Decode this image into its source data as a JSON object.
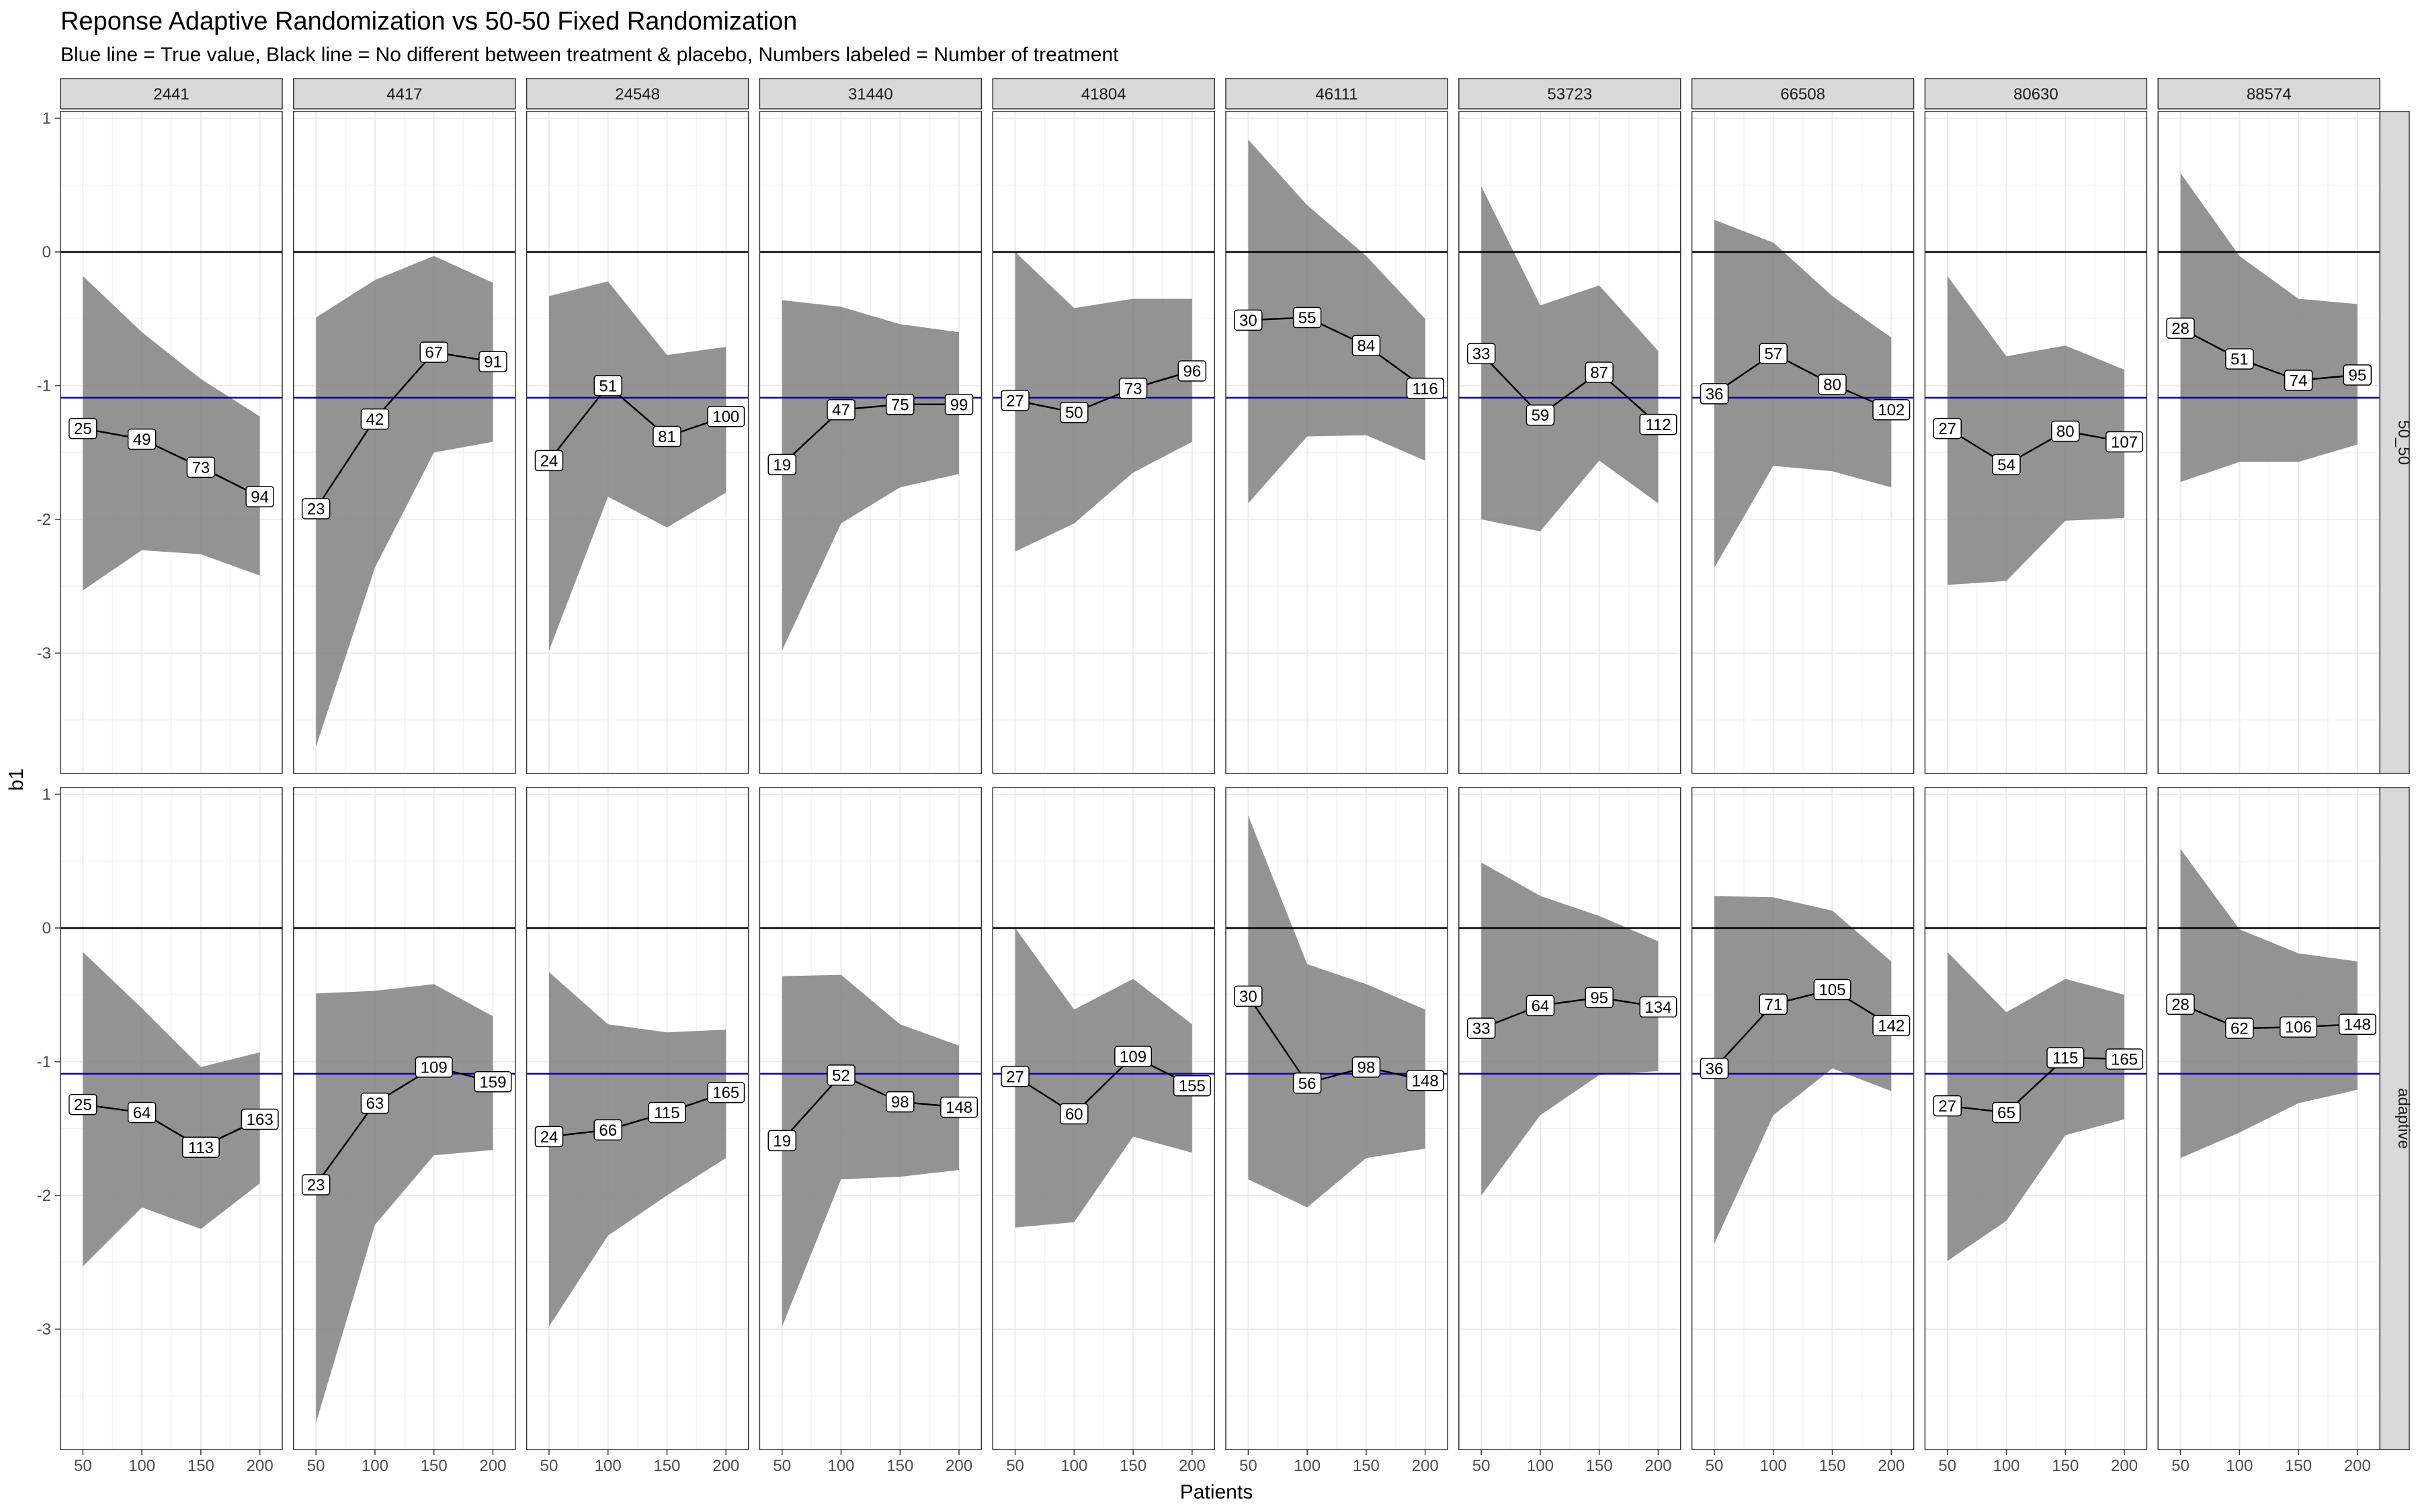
{
  "title": "Reponse Adaptive Randomization vs 50-50 Fixed Randomization",
  "subtitle": "Blue line = True value, Black line = No different between treatment & placebo, Numbers labeled = Number of treatment",
  "colors": {
    "true_value_line": "#0000cc",
    "zero_line": "#000000",
    "ribbon": "#808080",
    "strip_fill": "#d9d9d9",
    "grid": "#ebebeb"
  },
  "chart_data": {
    "type": "line",
    "xlabel": "Patients",
    "ylabel": "b1",
    "x": [
      50,
      100,
      150,
      200
    ],
    "x_ticks": [
      50,
      100,
      150,
      200
    ],
    "y_ticks": [
      1,
      0,
      -1,
      -2,
      -3
    ],
    "ylim": [
      -3.9,
      1.05
    ],
    "xlim": [
      31,
      219
    ],
    "hlines": {
      "true_value": -1.09,
      "no_difference": 0
    },
    "grid": true,
    "facet_columns": [
      "2441",
      "4417",
      "24548",
      "31440",
      "41804",
      "46111",
      "53723",
      "66508",
      "80630",
      "88574"
    ],
    "facet_rows": [
      "50_50",
      "adaptive"
    ],
    "panels": [
      {
        "row": "50_50",
        "col": "2441",
        "estimate": [
          -1.32,
          -1.4,
          -1.61,
          -1.83
        ],
        "lower": [
          -2.53,
          -2.23,
          -2.26,
          -2.42
        ],
        "upper": [
          -0.18,
          -0.6,
          -0.95,
          -1.23
        ],
        "labels": [
          "25",
          "49",
          "73",
          "94"
        ]
      },
      {
        "row": "50_50",
        "col": "4417",
        "estimate": [
          -1.92,
          -1.25,
          -0.75,
          -0.82
        ],
        "lower": [
          -3.7,
          -2.36,
          -1.5,
          -1.42
        ],
        "upper": [
          -0.49,
          -0.21,
          -0.03,
          -0.23
        ],
        "labels": [
          "23",
          "42",
          "67",
          "91"
        ]
      },
      {
        "row": "50_50",
        "col": "24548",
        "estimate": [
          -1.56,
          -1.0,
          -1.38,
          -1.23
        ],
        "lower": [
          -2.98,
          -1.83,
          -2.06,
          -1.8
        ],
        "upper": [
          -0.33,
          -0.22,
          -0.77,
          -0.71
        ],
        "labels": [
          "24",
          "51",
          "81",
          "100"
        ]
      },
      {
        "row": "50_50",
        "col": "31440",
        "estimate": [
          -1.59,
          -1.18,
          -1.14,
          -1.14
        ],
        "lower": [
          -2.98,
          -2.03,
          -1.76,
          -1.66
        ],
        "upper": [
          -0.36,
          -0.41,
          -0.54,
          -0.6
        ],
        "labels": [
          "19",
          "47",
          "75",
          "99"
        ]
      },
      {
        "row": "50_50",
        "col": "41804",
        "estimate": [
          -1.11,
          -1.2,
          -1.02,
          -0.89
        ],
        "lower": [
          -2.24,
          -2.03,
          -1.65,
          -1.42
        ],
        "upper": [
          0.0,
          -0.42,
          -0.35,
          -0.35
        ],
        "labels": [
          "27",
          "50",
          "73",
          "96"
        ]
      },
      {
        "row": "50_50",
        "col": "46111",
        "estimate": [
          -0.51,
          -0.49,
          -0.7,
          -1.02
        ],
        "lower": [
          -1.88,
          -1.38,
          -1.37,
          -1.56
        ],
        "upper": [
          0.84,
          0.35,
          -0.03,
          -0.5
        ],
        "labels": [
          "30",
          "55",
          "84",
          "116"
        ]
      },
      {
        "row": "50_50",
        "col": "53723",
        "estimate": [
          -0.76,
          -1.22,
          -0.9,
          -1.29
        ],
        "lower": [
          -2.0,
          -2.09,
          -1.56,
          -1.88
        ],
        "upper": [
          0.49,
          -0.4,
          -0.25,
          -0.74
        ],
        "labels": [
          "33",
          "59",
          "87",
          "112"
        ]
      },
      {
        "row": "50_50",
        "col": "66508",
        "estimate": [
          -1.06,
          -0.76,
          -0.99,
          -1.18
        ],
        "lower": [
          -2.36,
          -1.6,
          -1.64,
          -1.76
        ],
        "upper": [
          0.24,
          0.07,
          -0.33,
          -0.64
        ],
        "labels": [
          "36",
          "57",
          "80",
          "102"
        ]
      },
      {
        "row": "50_50",
        "col": "80630",
        "estimate": [
          -1.32,
          -1.59,
          -1.34,
          -1.42
        ],
        "lower": [
          -2.49,
          -2.46,
          -2.01,
          -1.99
        ],
        "upper": [
          -0.18,
          -0.78,
          -0.7,
          -0.88
        ],
        "labels": [
          "27",
          "54",
          "80",
          "107"
        ]
      },
      {
        "row": "50_50",
        "col": "88574",
        "estimate": [
          -0.57,
          -0.8,
          -0.96,
          -0.92
        ],
        "lower": [
          -1.72,
          -1.57,
          -1.57,
          -1.44
        ],
        "upper": [
          0.59,
          -0.03,
          -0.35,
          -0.39
        ],
        "labels": [
          "28",
          "51",
          "74",
          "95"
        ]
      },
      {
        "row": "adaptive",
        "col": "2441",
        "estimate": [
          -1.32,
          -1.38,
          -1.64,
          -1.43
        ],
        "lower": [
          -2.53,
          -2.09,
          -2.25,
          -1.91
        ],
        "upper": [
          -0.18,
          -0.6,
          -1.04,
          -0.93
        ],
        "labels": [
          "25",
          "64",
          "113",
          "163"
        ]
      },
      {
        "row": "adaptive",
        "col": "4417",
        "estimate": [
          -1.92,
          -1.31,
          -1.04,
          -1.15
        ],
        "lower": [
          -3.7,
          -2.22,
          -1.7,
          -1.66
        ],
        "upper": [
          -0.49,
          -0.47,
          -0.42,
          -0.66
        ],
        "labels": [
          "23",
          "63",
          "109",
          "159"
        ]
      },
      {
        "row": "adaptive",
        "col": "24548",
        "estimate": [
          -1.56,
          -1.51,
          -1.38,
          -1.23
        ],
        "lower": [
          -2.98,
          -2.3,
          -2.0,
          -1.72
        ],
        "upper": [
          -0.33,
          -0.72,
          -0.78,
          -0.76
        ],
        "labels": [
          "24",
          "66",
          "115",
          "165"
        ]
      },
      {
        "row": "adaptive",
        "col": "31440",
        "estimate": [
          -1.59,
          -1.1,
          -1.3,
          -1.34
        ],
        "lower": [
          -2.98,
          -1.88,
          -1.86,
          -1.81
        ],
        "upper": [
          -0.36,
          -0.35,
          -0.72,
          -0.88
        ],
        "labels": [
          "19",
          "52",
          "98",
          "148"
        ]
      },
      {
        "row": "adaptive",
        "col": "41804",
        "estimate": [
          -1.11,
          -1.39,
          -0.96,
          -1.18
        ],
        "lower": [
          -2.24,
          -2.2,
          -1.56,
          -1.68
        ],
        "upper": [
          0.0,
          -0.61,
          -0.38,
          -0.72
        ],
        "labels": [
          "27",
          "60",
          "109",
          "155"
        ]
      },
      {
        "row": "adaptive",
        "col": "46111",
        "estimate": [
          -0.51,
          -1.16,
          -1.04,
          -1.14
        ],
        "lower": [
          -1.88,
          -2.09,
          -1.72,
          -1.65
        ],
        "upper": [
          0.84,
          -0.27,
          -0.42,
          -0.61
        ],
        "labels": [
          "30",
          "56",
          "98",
          "148"
        ]
      },
      {
        "row": "adaptive",
        "col": "53723",
        "estimate": [
          -0.75,
          -0.58,
          -0.52,
          -0.59
        ],
        "lower": [
          -2.0,
          -1.4,
          -1.1,
          -1.07
        ],
        "upper": [
          0.49,
          0.24,
          0.09,
          -0.1
        ],
        "labels": [
          "33",
          "64",
          "95",
          "134"
        ]
      },
      {
        "row": "adaptive",
        "col": "66508",
        "estimate": [
          -1.05,
          -0.57,
          -0.46,
          -0.73
        ],
        "lower": [
          -2.36,
          -1.4,
          -1.05,
          -1.22
        ],
        "upper": [
          0.24,
          0.23,
          0.13,
          -0.25
        ],
        "labels": [
          "36",
          "71",
          "105",
          "142"
        ]
      },
      {
        "row": "adaptive",
        "col": "80630",
        "estimate": [
          -1.33,
          -1.38,
          -0.97,
          -0.98
        ],
        "lower": [
          -2.49,
          -2.19,
          -1.55,
          -1.43
        ],
        "upper": [
          -0.18,
          -0.63,
          -0.38,
          -0.5
        ],
        "labels": [
          "27",
          "65",
          "115",
          "165"
        ]
      },
      {
        "row": "adaptive",
        "col": "88574",
        "estimate": [
          -0.57,
          -0.75,
          -0.74,
          -0.72
        ],
        "lower": [
          -1.72,
          -1.53,
          -1.31,
          -1.21
        ],
        "upper": [
          0.59,
          -0.01,
          -0.19,
          -0.25
        ],
        "labels": [
          "28",
          "62",
          "106",
          "148"
        ]
      }
    ]
  }
}
